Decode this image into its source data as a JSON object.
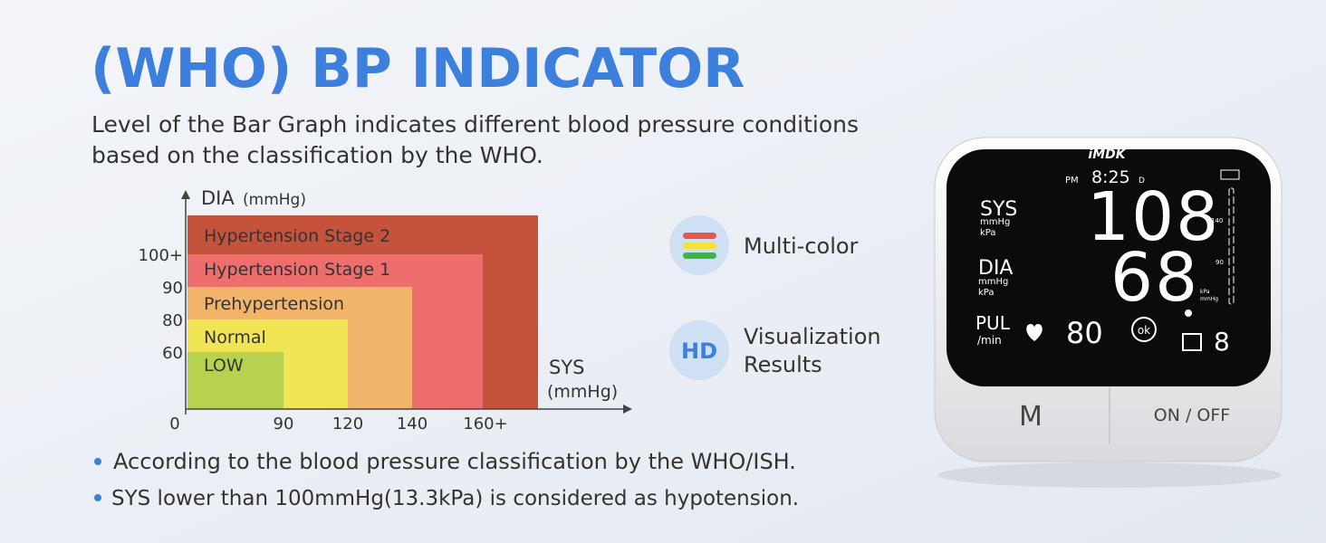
{
  "title": "(WHO) BP INDICATOR",
  "description": [
    "Level of the Bar Graph indicates different blood pressure conditions",
    "based on the classification by the WHO."
  ],
  "graph": {
    "y_axis_label": "DIA",
    "y_axis_unit": "(mmHg)",
    "x_axis_label": "SYS",
    "x_axis_unit": "(mmHg)",
    "origin": "0",
    "y_ticks": [
      "100+",
      "90",
      "80",
      "60"
    ],
    "x_ticks": [
      "90",
      "120",
      "140",
      "160+"
    ],
    "zones": [
      "Hypertension Stage 2",
      "Hypertension Stage 1",
      "Prehypertension",
      "Normal",
      "LOW"
    ]
  },
  "features": [
    {
      "label": [
        "Multi-color"
      ]
    },
    {
      "icon_text": "HD",
      "label": [
        "Visualization",
        "Results"
      ]
    }
  ],
  "notes": [
    "According to the blood pressure classification by the WHO/ISH.",
    "SYS lower than 100mmHg(13.3kPa) is considered as hypotension."
  ],
  "device": {
    "brand": "iMDK",
    "period": "PM",
    "time": "8:25",
    "day": "D",
    "sys_label": "SYS",
    "sys_units": [
      "mmHg",
      "kPa"
    ],
    "sys_value": "108",
    "dia_label": "DIA",
    "dia_units": [
      "mmHg",
      "kPa"
    ],
    "dia_value": "68",
    "scale_marks": [
      "140",
      "90"
    ],
    "scale_units": [
      "kPa",
      "mmHg"
    ],
    "pul_label": "PUL",
    "pul_unit": "/min",
    "pul_value": "80",
    "ok": "ok",
    "memory": "8",
    "buttons": [
      "M",
      "ON / OFF"
    ]
  }
}
